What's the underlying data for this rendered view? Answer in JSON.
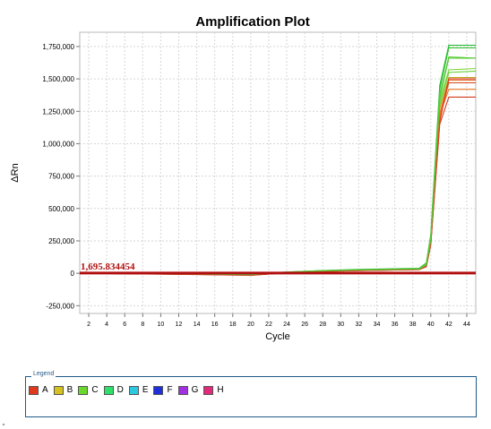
{
  "chart_data": {
    "type": "line",
    "title": "Amplification Plot",
    "xlabel": "Cycle",
    "ylabel": "ΔRn",
    "xlim": [
      1,
      45
    ],
    "ylim": [
      -310000,
      1860000
    ],
    "x_ticks": [
      2,
      4,
      6,
      8,
      10,
      12,
      14,
      16,
      18,
      20,
      22,
      24,
      26,
      28,
      30,
      32,
      34,
      36,
      38,
      40,
      42,
      44
    ],
    "y_ticks": [
      -250000,
      0,
      250000,
      500000,
      750000,
      1000000,
      1250000,
      1500000,
      1750000
    ],
    "y_tick_labels": [
      "-250,000",
      "0",
      "250,000",
      "500,000",
      "750,000",
      "1,000,000",
      "1,250,000",
      "1,500,000",
      "1,750,000"
    ],
    "grid": true,
    "threshold": {
      "value": 1695.834454,
      "label": "1,695.834454",
      "color": "#b01010"
    },
    "x": [
      1,
      14,
      20,
      24,
      28,
      32,
      36,
      38.7,
      39.5,
      40,
      41,
      42,
      45
    ],
    "series": [
      {
        "color": "#1fb82e",
        "values": [
          0,
          -5000,
          -8000,
          10000,
          22000,
          30000,
          35000,
          38000,
          80000,
          300000,
          1450000,
          1760000,
          1760000
        ]
      },
      {
        "color": "#35c232",
        "values": [
          0,
          -4000,
          -6000,
          9000,
          21000,
          28000,
          33000,
          36000,
          78000,
          290000,
          1420000,
          1740000,
          1740000
        ]
      },
      {
        "color": "#5cd235",
        "values": [
          0,
          -6000,
          -10000,
          8000,
          20000,
          26000,
          31000,
          34000,
          70000,
          280000,
          1380000,
          1670000,
          1660000
        ]
      },
      {
        "color": "#80d63c",
        "values": [
          0,
          -5000,
          -9000,
          7000,
          19000,
          25000,
          30000,
          33000,
          68000,
          270000,
          1330000,
          1570000,
          1580000
        ]
      },
      {
        "color": "#6ccf3a",
        "values": [
          0,
          -7000,
          -12000,
          6000,
          18000,
          24000,
          29000,
          32000,
          66000,
          265000,
          1300000,
          1550000,
          1560000
        ]
      },
      {
        "color": "#b9a320",
        "values": [
          0,
          -5000,
          -9000,
          6000,
          17000,
          23000,
          28000,
          31000,
          60000,
          250000,
          1270000,
          1510000,
          1510000
        ]
      },
      {
        "color": "#e06a2a",
        "values": [
          0,
          -8000,
          -14000,
          5000,
          16000,
          22000,
          27000,
          30000,
          55000,
          240000,
          1230000,
          1490000,
          1490000
        ]
      },
      {
        "color": "#d9541f",
        "values": [
          0,
          -9000,
          -15000,
          4000,
          15000,
          21000,
          26000,
          29000,
          52000,
          230000,
          1200000,
          1470000,
          1470000
        ]
      },
      {
        "color": "#e5751f",
        "values": [
          0,
          -6000,
          -11000,
          5000,
          16000,
          22000,
          27000,
          30000,
          54000,
          235000,
          1220000,
          1420000,
          1420000
        ]
      },
      {
        "color": "#cf3a1c",
        "values": [
          0,
          -10000,
          -16000,
          3000,
          14000,
          20000,
          25000,
          28000,
          50000,
          220000,
          1150000,
          1360000,
          1360000
        ]
      },
      {
        "color": "#e23a1e",
        "values": [
          0,
          -7000,
          -13000,
          4000,
          15000,
          21000,
          26000,
          29000,
          53000,
          225000,
          1170000,
          1500000,
          1500000
        ]
      },
      {
        "color": "#55c83a",
        "values": [
          0,
          -6000,
          -11000,
          7000,
          19000,
          25000,
          30000,
          33000,
          64000,
          260000,
          1350000,
          1660000,
          1660000
        ]
      }
    ]
  },
  "legend": {
    "caption": "Legend",
    "items": [
      {
        "label": "A",
        "color": "#e03a1e"
      },
      {
        "label": "B",
        "color": "#d6c21e"
      },
      {
        "label": "C",
        "color": "#6ad82a"
      },
      {
        "label": "D",
        "color": "#2ee06a"
      },
      {
        "label": "E",
        "color": "#2bc8e0"
      },
      {
        "label": "F",
        "color": "#2030d8"
      },
      {
        "label": "G",
        "color": "#a030e0"
      },
      {
        "label": "H",
        "color": "#e02a7a"
      }
    ]
  }
}
